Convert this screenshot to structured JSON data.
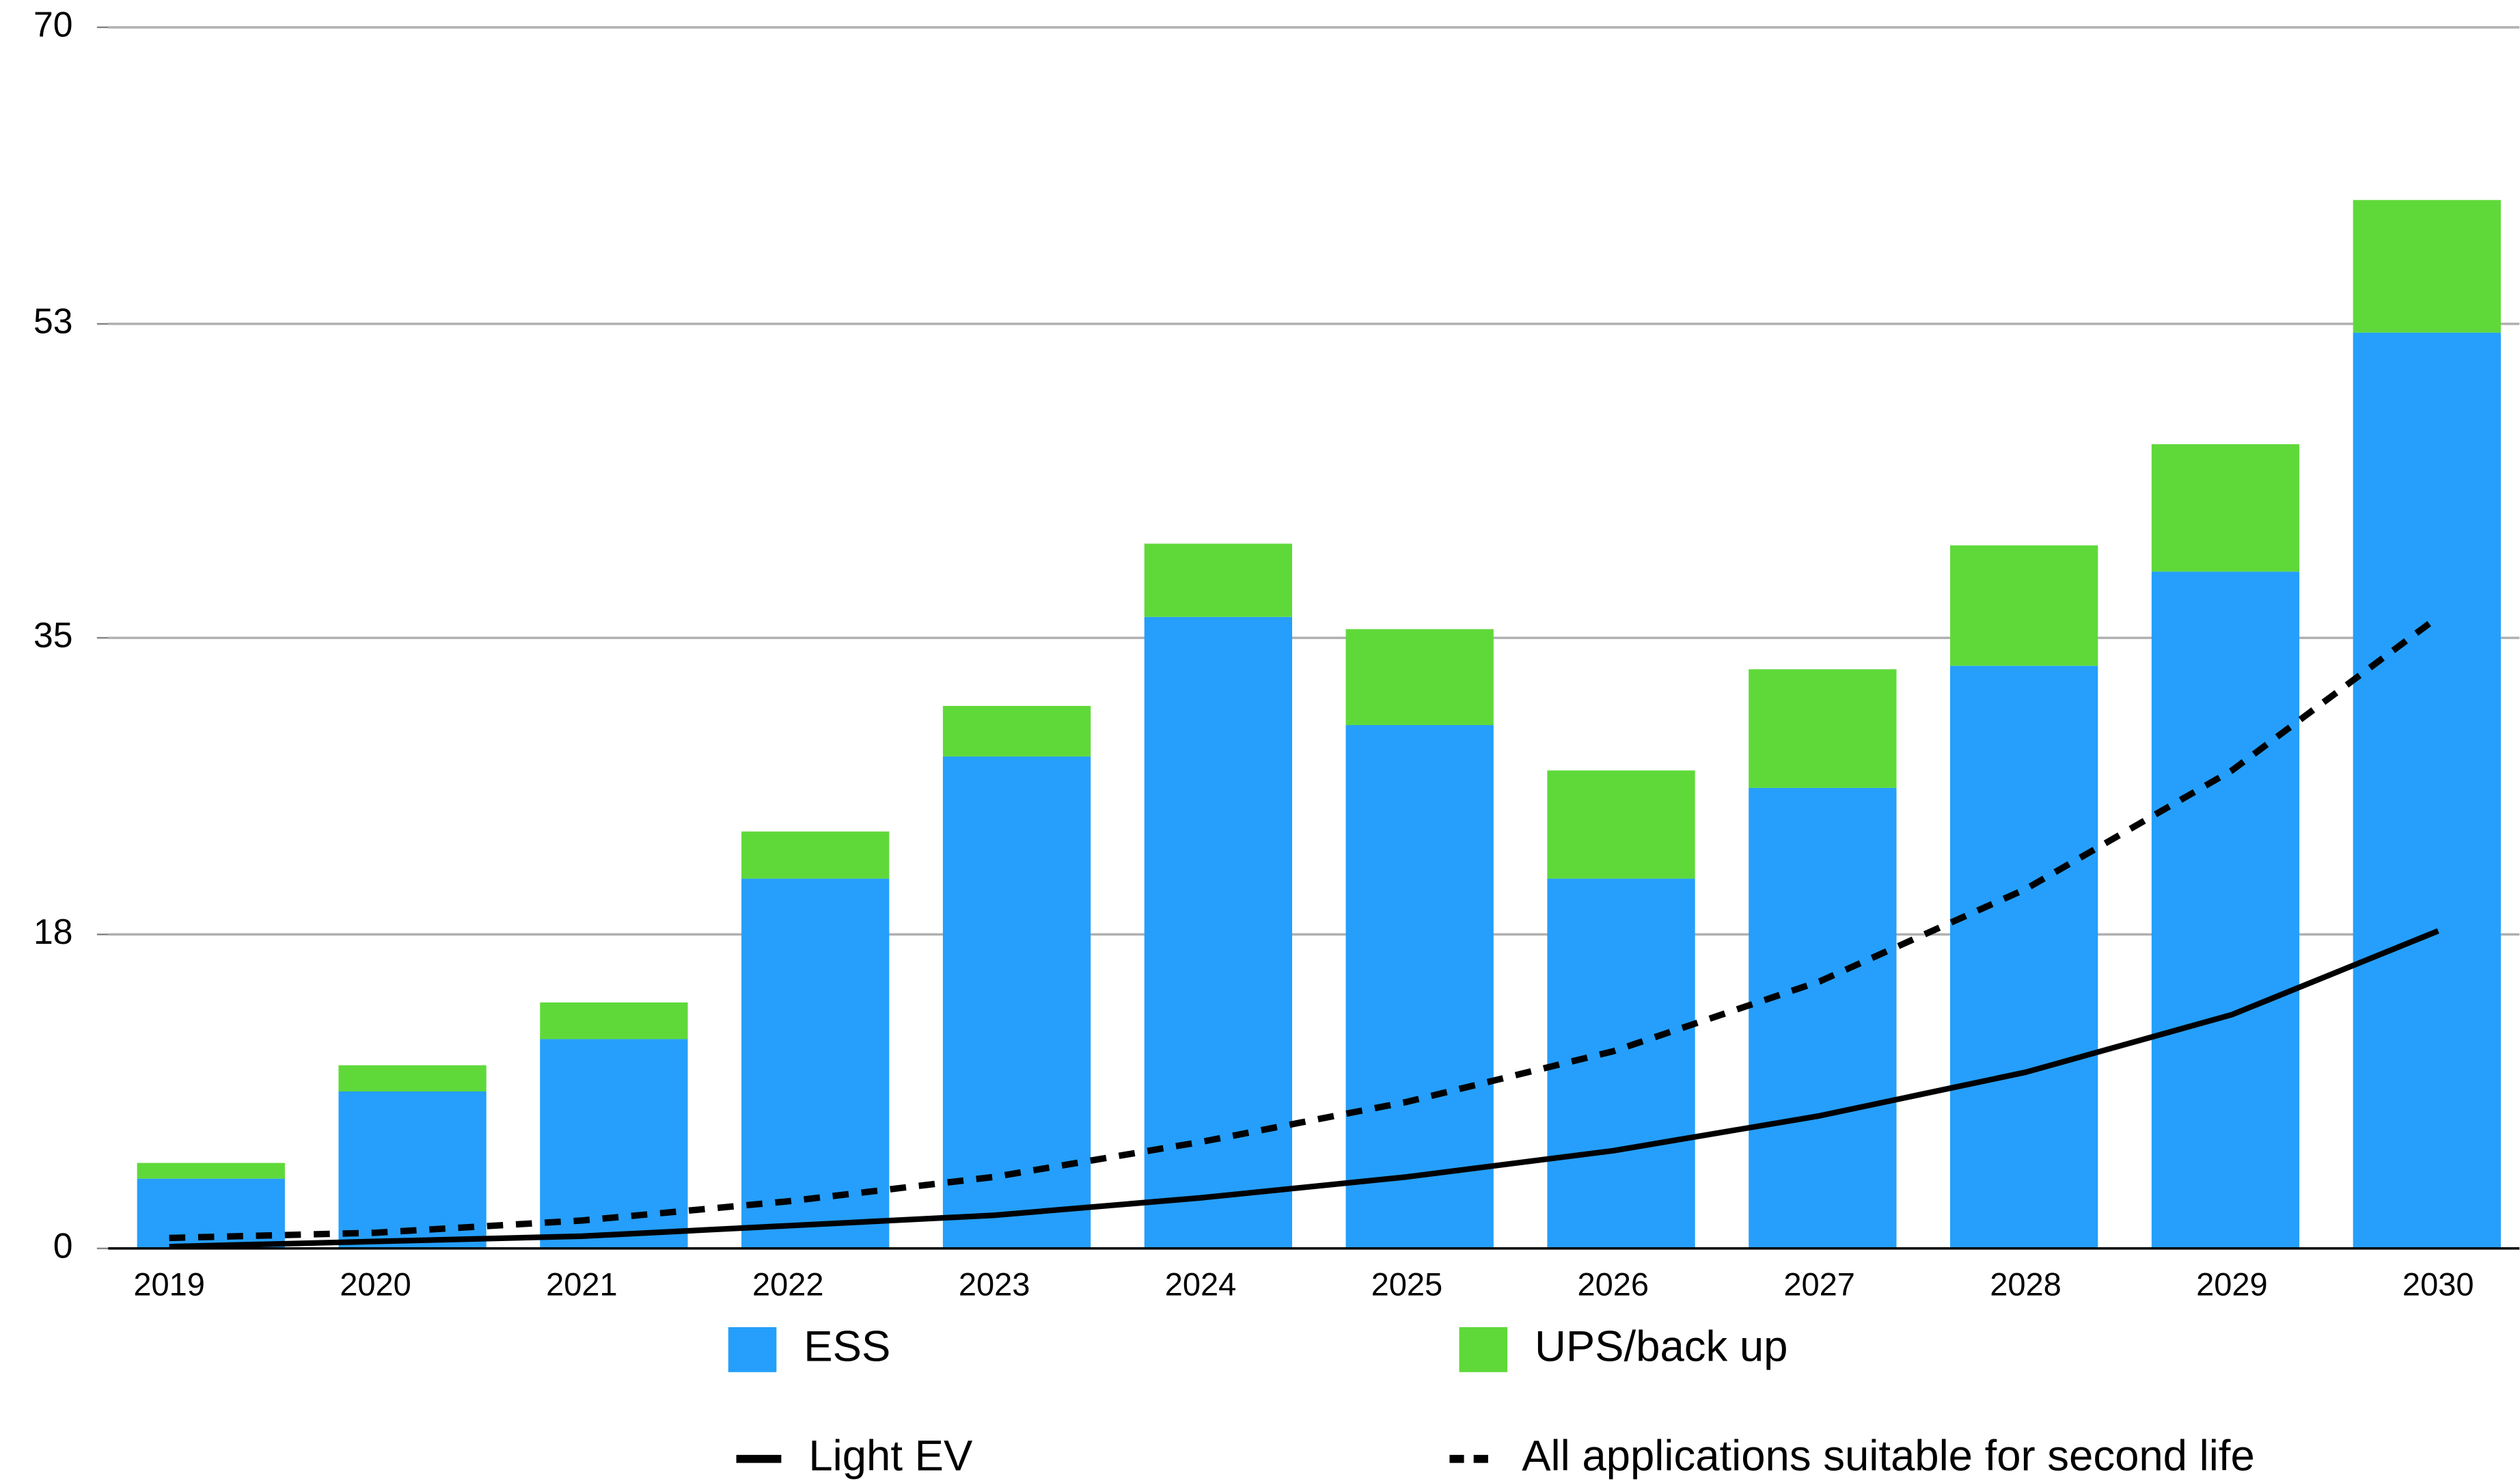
{
  "chart_data": {
    "type": "bar",
    "stacked": true,
    "categories": [
      "2019",
      "2020",
      "2021",
      "2022",
      "2023",
      "2024",
      "2025",
      "2026",
      "2027",
      "2028",
      "2029",
      "2030"
    ],
    "series": [
      {
        "name": "ESS",
        "type": "bar",
        "color": "#259ffb",
        "values": [
          4,
          9,
          12,
          21.2,
          28.2,
          36.2,
          30,
          21.2,
          26.4,
          33.4,
          38.8,
          52.5
        ]
      },
      {
        "name": "UPS/back up",
        "type": "bar",
        "color": "#5fd93a",
        "values": [
          0.9,
          1.5,
          2.1,
          2.7,
          2.9,
          4.2,
          5.5,
          6.2,
          6.8,
          6.9,
          7.3,
          7.6
        ]
      },
      {
        "name": "Light EV",
        "type": "line",
        "color": "#000000",
        "dash": "solid",
        "values": [
          0.1,
          0.4,
          0.7,
          1.3,
          1.9,
          2.9,
          4.1,
          5.6,
          7.6,
          10.1,
          13.4,
          18.2
        ]
      },
      {
        "name": "All applications suitable for second life",
        "type": "line",
        "color": "#000000",
        "dash": "dashed",
        "values": [
          0.6,
          0.9,
          1.6,
          2.7,
          4.1,
          6.1,
          8.4,
          11.3,
          15.3,
          20.6,
          27.4,
          36.2
        ]
      }
    ],
    "ylim": [
      0,
      70
    ],
    "yticks": [
      0,
      18,
      35,
      53,
      70
    ],
    "grid": true
  }
}
